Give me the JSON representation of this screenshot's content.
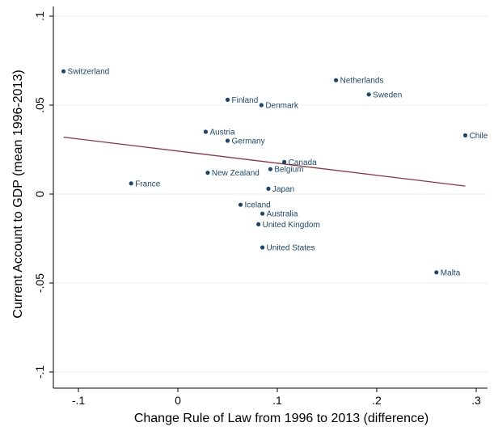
{
  "chart_data": {
    "type": "scatter",
    "title": "",
    "xlabel": "Change Rule of Law from 1996 to 2013 (difference)",
    "ylabel": "Current Account to GDP (mean 1996-2013)",
    "xlim": [
      -0.125,
      0.31
    ],
    "ylim": [
      -0.1,
      0.1
    ],
    "x_ticks": [
      {
        "value": -0.1,
        "label": "-.1"
      },
      {
        "value": 0,
        "label": "0"
      },
      {
        "value": 0.1,
        "label": ".1"
      },
      {
        "value": 0.2,
        "label": ".2"
      },
      {
        "value": 0.3,
        "label": ".3"
      }
    ],
    "y_ticks": [
      {
        "value": -0.1,
        "label": "-.1"
      },
      {
        "value": -0.05,
        "label": "-.05"
      },
      {
        "value": 0,
        "label": "0"
      },
      {
        "value": 0.05,
        "label": ".05"
      },
      {
        "value": 0.1,
        "label": ".1"
      }
    ],
    "grid": true,
    "legend": "none",
    "colors": {
      "points": "#1a476f",
      "fit_line": "#90353b",
      "grid": "#e8eef3"
    },
    "points": [
      {
        "label": "Switzerland",
        "x": -0.115,
        "y": 0.069
      },
      {
        "label": "Netherlands",
        "x": 0.159,
        "y": 0.064
      },
      {
        "label": "Sweden",
        "x": 0.192,
        "y": 0.056
      },
      {
        "label": "Finland",
        "x": 0.05,
        "y": 0.053
      },
      {
        "label": "Denmark",
        "x": 0.084,
        "y": 0.05
      },
      {
        "label": "Chile",
        "x": 0.289,
        "y": 0.033
      },
      {
        "label": "Austria",
        "x": 0.028,
        "y": 0.035
      },
      {
        "label": "Germany",
        "x": 0.05,
        "y": 0.03
      },
      {
        "label": "Canada",
        "x": 0.107,
        "y": 0.018
      },
      {
        "label": "Belgium",
        "x": 0.093,
        "y": 0.014
      },
      {
        "label": "New Zealand",
        "x": 0.03,
        "y": 0.012
      },
      {
        "label": "France",
        "x": -0.047,
        "y": 0.006
      },
      {
        "label": "Japan",
        "x": 0.091,
        "y": 0.003
      },
      {
        "label": "Iceland",
        "x": 0.063,
        "y": -0.006
      },
      {
        "label": "Australia",
        "x": 0.085,
        "y": -0.011
      },
      {
        "label": "United Kingdom",
        "x": 0.081,
        "y": -0.017
      },
      {
        "label": "United States",
        "x": 0.085,
        "y": -0.03
      },
      {
        "label": "Malta",
        "x": 0.26,
        "y": -0.044
      }
    ],
    "fit_line": {
      "x": [
        -0.115,
        0.289
      ],
      "y": [
        0.032,
        0.0045
      ]
    }
  }
}
